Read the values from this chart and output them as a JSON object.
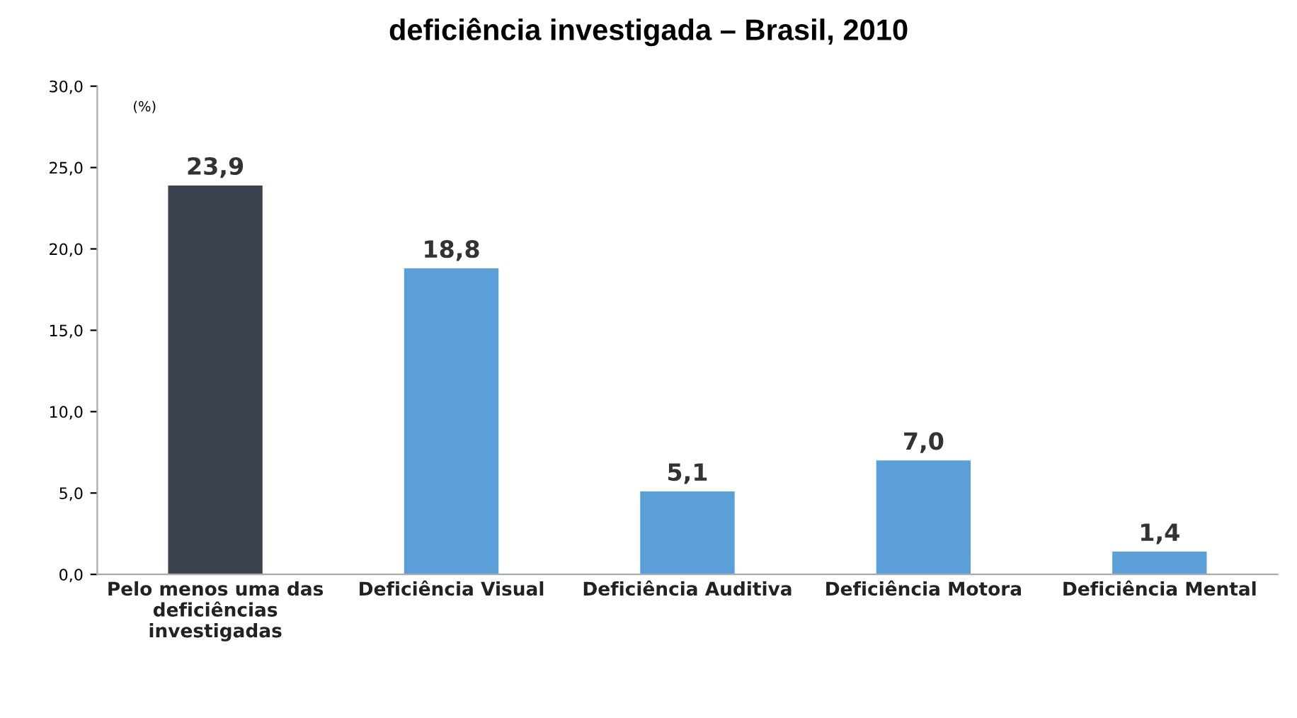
{
  "chart_data": {
    "type": "bar",
    "title": "deficiência investigada – Brasil, 2010",
    "ylabel": "(%)",
    "categories": [
      "Pelo menos uma das\ndeficiências\ninvestigadas",
      "Deficiência Visual",
      "Deficiência Auditiva",
      "Deficiência Motora",
      "Deficiência Mental"
    ],
    "values": [
      23.9,
      18.8,
      5.1,
      7.0,
      1.4
    ],
    "colors": [
      "#3b4350",
      "#5b9fd8",
      "#5b9fd8",
      "#5b9fd8",
      "#5b9fd8"
    ],
    "value_labels": [
      "23,9",
      "18,8",
      "5,1",
      "7,0",
      "1,4"
    ],
    "ylim": [
      0,
      30
    ],
    "yticks": [
      {
        "value": 0,
        "label": "0,0"
      },
      {
        "value": 5,
        "label": "5,0"
      },
      {
        "value": 10,
        "label": "10,0"
      },
      {
        "value": 15,
        "label": "15,0"
      },
      {
        "value": 20,
        "label": "20,0"
      },
      {
        "value": 25,
        "label": "25,0"
      },
      {
        "value": 30,
        "label": "30,0"
      }
    ],
    "grid": false
  }
}
